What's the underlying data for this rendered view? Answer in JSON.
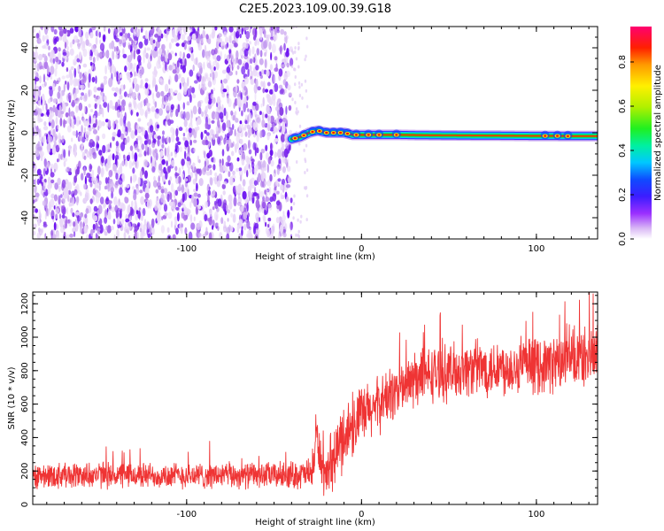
{
  "chart_data": [
    {
      "type": "heatmap",
      "title": "C2E5.2023.109.00.39.G18",
      "xlabel": "Height of straight line (km)",
      "ylabel": "Frequency (Hz)",
      "xlim": [
        -188,
        135
      ],
      "ylim": [
        -50,
        50
      ],
      "xticks": [
        -100,
        0,
        100
      ],
      "yticks": [
        -40,
        -20,
        0,
        20,
        40
      ],
      "noise_region_x": [
        -188,
        -40
      ],
      "signal_track": {
        "x": [
          -40,
          -35,
          -30,
          -25,
          -20,
          -15,
          -10,
          -5,
          0,
          5,
          10,
          20,
          40,
          60,
          80,
          100,
          110,
          120,
          135
        ],
        "freq": [
          -3,
          -2,
          0,
          1,
          0,
          0,
          0,
          -1,
          -1,
          -1,
          -1,
          -1,
          -1.2,
          -1.3,
          -1.4,
          -1.5,
          -1.5,
          -1.6,
          -1.6
        ]
      },
      "colorbar": {
        "label": "Normalized spectral amplitude",
        "ticks": [
          0.0,
          0.2,
          0.4,
          0.6,
          0.8
        ],
        "tick_labels": [
          "0.0",
          "0.2",
          "0.4",
          "0.6",
          "0.8"
        ],
        "range": [
          0,
          0.96
        ]
      }
    },
    {
      "type": "line",
      "xlabel": "Height of straight line (km)",
      "ylabel": "SNR (10 * v/v)",
      "xlim": [
        -188,
        135
      ],
      "ylim": [
        0,
        1270
      ],
      "xticks": [
        -100,
        0,
        100
      ],
      "yticks": [
        0,
        200,
        400,
        600,
        800,
        1000,
        1200
      ],
      "color": "#ef3434",
      "trend": {
        "x": [
          -188,
          -150,
          -100,
          -50,
          -28,
          -26,
          -22,
          -20,
          -15,
          -10,
          -5,
          0,
          5,
          10,
          20,
          30,
          40,
          50,
          60,
          80,
          100,
          120,
          135
        ],
        "mean": [
          175,
          175,
          172,
          175,
          180,
          420,
          200,
          130,
          300,
          420,
          470,
          520,
          560,
          600,
          680,
          740,
          780,
          790,
          810,
          820,
          830,
          860,
          900
        ],
        "spread": [
          70,
          70,
          70,
          70,
          80,
          140,
          120,
          110,
          160,
          180,
          170,
          170,
          160,
          150,
          150,
          150,
          150,
          150,
          150,
          150,
          150,
          160,
          160
        ]
      }
    }
  ]
}
